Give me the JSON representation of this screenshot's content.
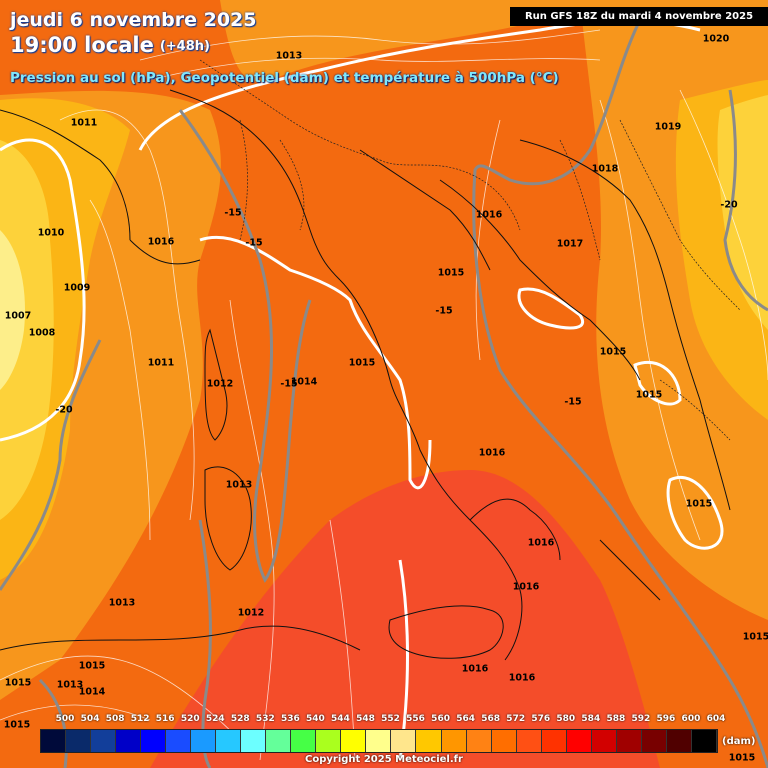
{
  "header": {
    "date": "jeudi 6 novembre 2025",
    "time": "19:00 locale",
    "lead": "(+48h)",
    "subtitle": "Pression au sol (hPa), Geopotentiel (dam) et température à 500hPa (°C)",
    "run": "Run GFS 18Z du mardi 4 novembre 2025"
  },
  "isobars": [
    "1013",
    "1020",
    "1011",
    "1019",
    "1018",
    "1016",
    "1010",
    "1016",
    "1017",
    "1015",
    "1009",
    "1007",
    "1008",
    "1015",
    "1011",
    "1012",
    "1014",
    "1015",
    "1015",
    "1016",
    "1013",
    "1016",
    "1015",
    "1012",
    "1016",
    "1013",
    "1015",
    "1015",
    "1016",
    "1016",
    "1013",
    "1014",
    "1015",
    "1015",
    "1015"
  ],
  "temperatures": [
    "-15",
    "-15",
    "-15",
    "-15",
    "-20",
    "-15",
    "-20"
  ],
  "legend": {
    "labels": [
      "500",
      "504",
      "508",
      "512",
      "516",
      "520",
      "524",
      "528",
      "532",
      "536",
      "540",
      "544",
      "548",
      "552",
      "556",
      "560",
      "564",
      "568",
      "572",
      "576",
      "580",
      "584",
      "588",
      "592",
      "596",
      "600",
      "604"
    ],
    "colors": [
      "#000a3a",
      "#0a2a6a",
      "#123e9a",
      "#0000c8",
      "#0000ff",
      "#1a4cff",
      "#1a9aff",
      "#26c8ff",
      "#6cffff",
      "#64ff9a",
      "#46ff46",
      "#aaff1e",
      "#ffff00",
      "#ffff8c",
      "#ffe68c",
      "#ffc800",
      "#ff9600",
      "#ff8214",
      "#ff6e00",
      "#ff5014",
      "#ff3200",
      "#ff0000",
      "#d20000",
      "#a00000",
      "#780000",
      "#500000",
      "#000000"
    ],
    "unit": "(dam)"
  },
  "copyright": "Copyright 2025 Meteociel.fr"
}
